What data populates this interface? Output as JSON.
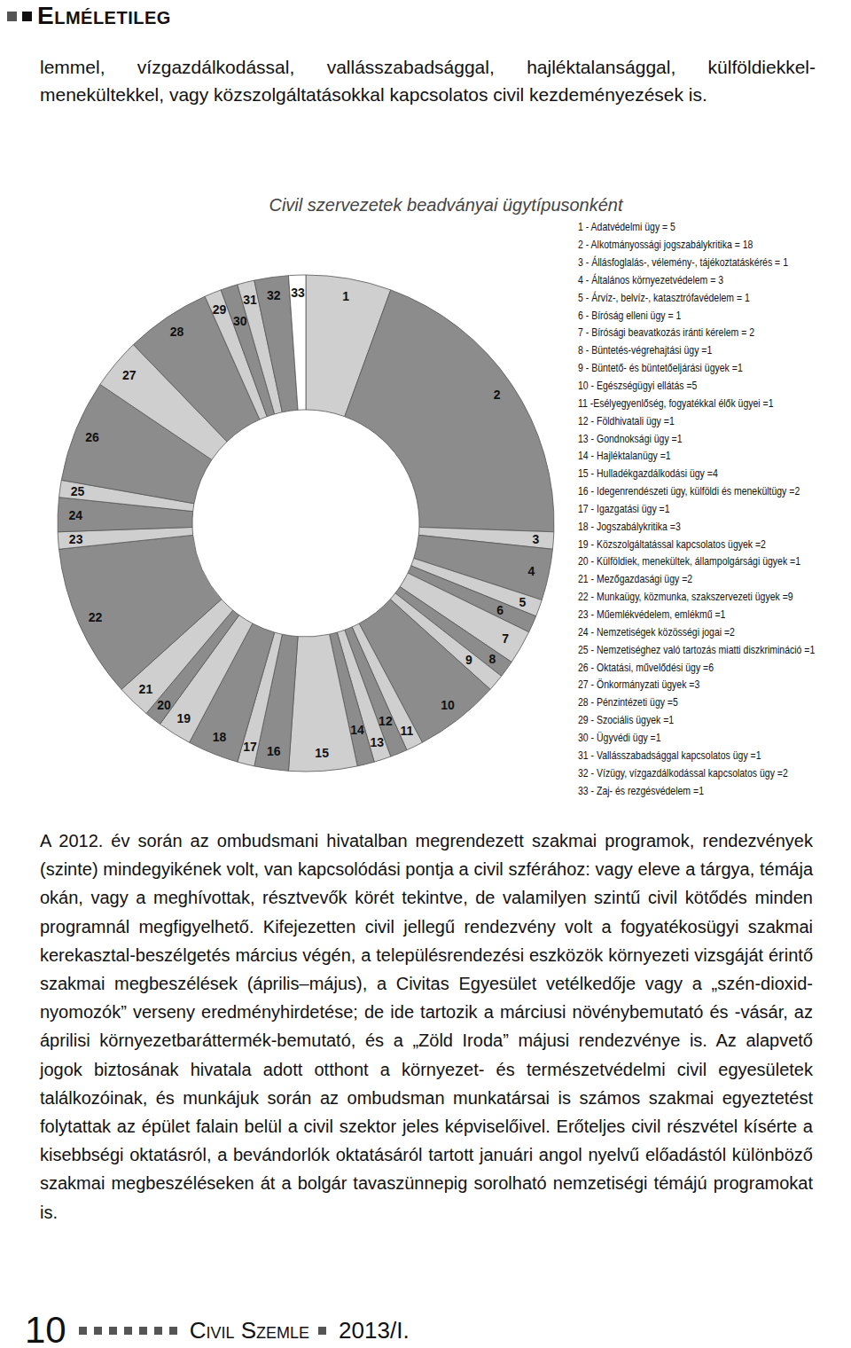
{
  "header": {
    "title": "Elméletileg"
  },
  "intro": "lemmel, vízgazdálkodással, vallásszabadsággal, hajléktalansággal, külföldiekkel-menekültekkel, vagy közszolgáltatásokkal kapcsolatos civil kezdeményezések is.",
  "chart_data": {
    "type": "pie",
    "title": "Civil szervezetek beadványai ügytípusonként",
    "categories": [
      "1",
      "2",
      "3",
      "4",
      "5",
      "6",
      "7",
      "8",
      "9",
      "10",
      "11",
      "12",
      "13",
      "14",
      "15",
      "16",
      "17",
      "18",
      "19",
      "20",
      "21",
      "22",
      "23",
      "24",
      "25",
      "26",
      "27",
      "28",
      "29",
      "30",
      "31",
      "32",
      "33"
    ],
    "values": [
      5,
      18,
      1,
      3,
      1,
      1,
      2,
      1,
      1,
      5,
      1,
      1,
      1,
      1,
      4,
      2,
      1,
      3,
      2,
      1,
      2,
      9,
      1,
      2,
      1,
      6,
      3,
      5,
      1,
      1,
      1,
      2,
      1
    ],
    "colors": [
      "#cfcfcf",
      "#8c8c8c",
      "#cfcfcf",
      "#8c8c8c",
      "#cfcfcf",
      "#8c8c8c",
      "#cfcfcf",
      "#8c8c8c",
      "#cfcfcf",
      "#8c8c8c",
      "#cfcfcf",
      "#8c8c8c",
      "#cfcfcf",
      "#8c8c8c",
      "#cfcfcf",
      "#8c8c8c",
      "#cfcfcf",
      "#8c8c8c",
      "#cfcfcf",
      "#8c8c8c",
      "#cfcfcf",
      "#8c8c8c",
      "#cfcfcf",
      "#8c8c8c",
      "#cfcfcf",
      "#8c8c8c",
      "#cfcfcf",
      "#8c8c8c",
      "#cfcfcf",
      "#8c8c8c",
      "#cfcfcf",
      "#8c8c8c",
      "#ffffff"
    ],
    "legend_entries": [
      "1 - Adatvédelmi ügy = 5",
      "2 - Alkotmányossági jogszabálykritika = 18",
      "3 - Állásfoglalás-, vélemény-, tájékoztatáskérés = 1",
      "4 - Általános környezetvédelem = 3",
      "5 - Árvíz-, belvíz-, katasztrófavédelem = 1",
      "6 - Bíróság elleni ügy = 1",
      "7 - Bírósági beavatkozás iránti kérelem = 2",
      "8 - Büntetés-végrehajtási ügy =1",
      "9 - Büntető- és büntetőeljárási ügyek =1",
      "10 - Egészségügyi ellátás =5",
      "11 -Esélyegyenlőség, fogyatékkal élők ügyei =1",
      "12 - Földhivatali ügy =1",
      "13 - Gondnoksági ügy =1",
      "14 - Hajléktalanügy =1",
      "15 - Hulladékgazdálkodási ügy =4",
      "16 - Idegenrendészeti ügy, külföldi és menekültügy =2",
      "17 - Igazgatási ügy =1",
      "18 - Jogszabálykritika =3",
      "19 - Közszolgáltatással kapcsolatos ügyek =2",
      "20 - Külföldiek, menekültek, állampolgársági ügyek =1",
      "21 - Mezőgazdasági ügy =2",
      "22 - Munkaügy, közmunka, szakszervezeti ügyek =9",
      "23 - Műemlékvédelem, emlékmű =1",
      "24 - Nemzetiségek közösségi jogai =2",
      "25 - Nemzetiséghez való tartozás miatti diszkrimináció =1",
      "26 - Oktatási, művelődési ügy =6",
      "27 - Önkormányzati ügyek =3",
      "28 - Pénzintézeti ügy =5",
      "29 - Szociális ügyek =1",
      "30 - Ügyvédi ügy =1",
      "31 - Vallásszabadsággal kapcsolatos ügy =1",
      "32 - Vízügy, vízgazdálkodással kapcsolatos ügy =2",
      "33 - Zaj- és rezgésvédelem =1"
    ]
  },
  "body": "A 2012. év során az ombudsmani hivatalban megrendezett szakmai programok, rendezvények (szinte) mindegyikének volt, van kapcsolódási pontja a civil szférához: vagy eleve a tárgya, témája okán, vagy a meghívottak, résztvevők körét tekintve, de valamilyen szintű civil kötődés minden programnál megfigyelhető. Kifejezetten civil jellegű rendezvény volt a fogyatékosügyi szakmai kerekasztal-beszélgetés március végén, a településrendezési eszközök környezeti vizsgáját érintő szakmai megbeszélések (április–május), a Civitas Egyesület vetélkedője vagy a „szén-dioxid-nyomozók” verseny eredményhirdetése; de ide tartozik a márciusi növénybemutató és -vásár, az áprilisi környezetbaráttermék-bemutató, és a „Zöld Iroda” májusi rendezvénye is. Az alapvető jogok biztosának hivatala adott otthont a környezet- és természetvédelmi civil egyesületek találkozóinak, és munkájuk során az ombudsman munkatársai is számos szakmai egyeztetést folytattak az épület falain belül a civil szektor jeles képviselőivel. Erőteljes civil részvétel kísérte a kisebbségi oktatásról, a bevándorlók oktatásáról tartott januári angol nyelvű előadástól különböző szakmai megbeszéléseken át a bolgár tavaszünnepig sorolható nemzetiségi témájú programokat is.",
  "footer": {
    "page": "10",
    "journal": "Civil Szemle",
    "issue": "2013/I."
  }
}
